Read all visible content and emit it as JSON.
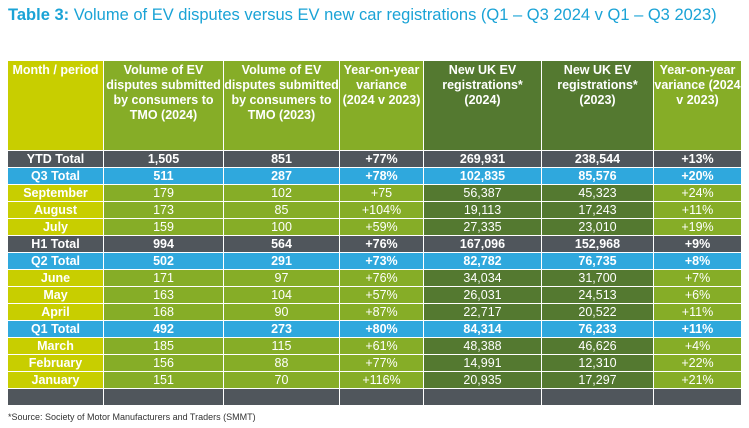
{
  "title": {
    "prefix": "Table 3:",
    "text": "Volume of EV disputes versus EV new car registrations (Q1 – Q3 2024 v Q1 – Q3 2023)"
  },
  "headers": [
    "Month / period",
    "Volume of EV disputes submitted by consumers to TMO (2024)",
    "Volume of EV disputes submitted by consumers to TMO (2023)",
    "Year-on-year variance (2024 v 2023)",
    "New UK EV registrations* (2024)",
    "New UK EV registrations* (2023)",
    "Year-on-year variance (2024 v 2023)"
  ],
  "rows": [
    {
      "type": "ytd",
      "cells": [
        "YTD Total",
        "1,505",
        "851",
        "+77%",
        "269,931",
        "238,544",
        "+13%"
      ]
    },
    {
      "type": "q",
      "cells": [
        "Q3 Total",
        "511",
        "287",
        "+78%",
        "102,835",
        "85,576",
        "+20%"
      ]
    },
    {
      "type": "m",
      "cells": [
        "September",
        "179",
        "102",
        "+75",
        "56,387",
        "45,323",
        "+24%"
      ]
    },
    {
      "type": "m",
      "cells": [
        "August",
        "173",
        "85",
        "+104%",
        "19,113",
        "17,243",
        "+11%"
      ]
    },
    {
      "type": "m",
      "cells": [
        "July",
        "159",
        "100",
        "+59%",
        "27,335",
        "23,010",
        "+19%"
      ]
    },
    {
      "type": "h1",
      "cells": [
        "H1 Total",
        "994",
        "564",
        "+76%",
        "167,096",
        "152,968",
        "+9%"
      ]
    },
    {
      "type": "q",
      "cells": [
        "Q2 Total",
        "502",
        "291",
        "+73%",
        "82,782",
        "76,735",
        "+8%"
      ]
    },
    {
      "type": "m",
      "cells": [
        "June",
        "171",
        "97",
        "+76%",
        "34,034",
        "31,700",
        "+7%"
      ]
    },
    {
      "type": "m",
      "cells": [
        "May",
        "163",
        "104",
        "+57%",
        "26,031",
        "24,513",
        "+6%"
      ]
    },
    {
      "type": "m",
      "cells": [
        "April",
        "168",
        "90",
        "+87%",
        "22,717",
        "20,522",
        "+11%"
      ]
    },
    {
      "type": "q",
      "cells": [
        "Q1 Total",
        "492",
        "273",
        "+80%",
        "84,314",
        "76,233",
        "+11%"
      ]
    },
    {
      "type": "m",
      "cells": [
        "March",
        "185",
        "115",
        "+61%",
        "48,388",
        "46,626",
        "+4%"
      ]
    },
    {
      "type": "m",
      "cells": [
        "February",
        "156",
        "88",
        "+77%",
        "14,991",
        "12,310",
        "+22%"
      ]
    },
    {
      "type": "m",
      "cells": [
        "January",
        "151",
        "70",
        "+116%",
        "20,935",
        "17,297",
        "+21%"
      ]
    },
    {
      "type": "bottom",
      "cells": [
        "",
        "",
        "",
        "",
        "",
        "",
        ""
      ]
    }
  ],
  "source": "*Source: Society of Motor Manufacturers and Traders (SMMT)"
}
